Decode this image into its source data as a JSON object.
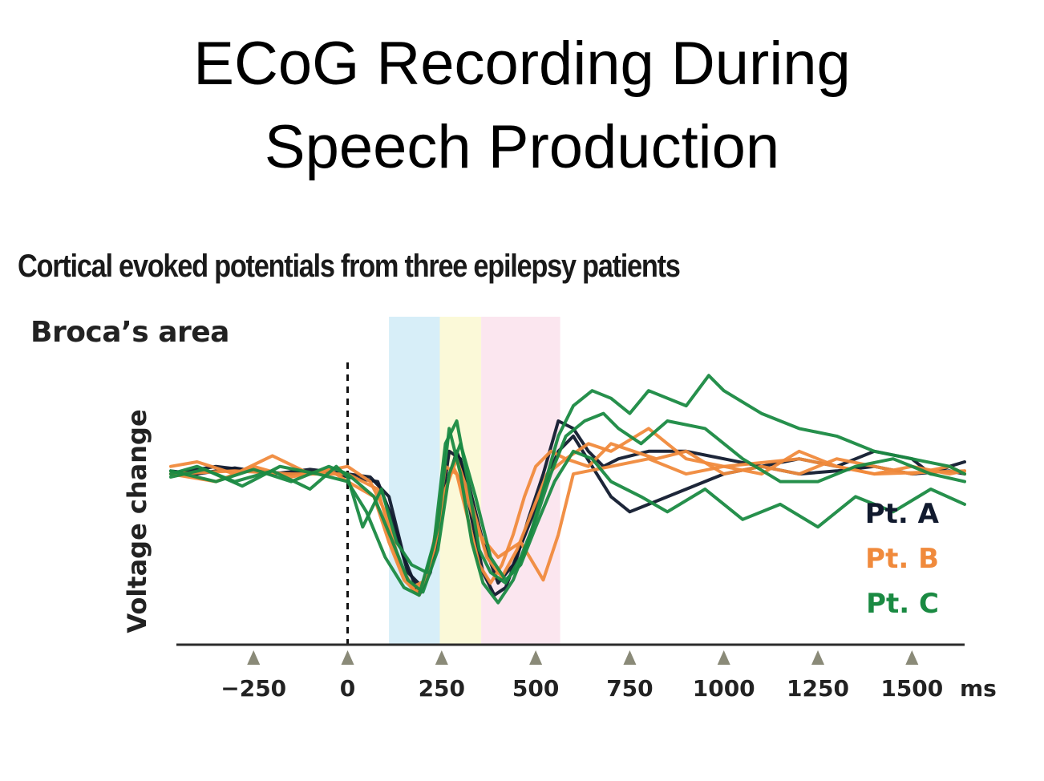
{
  "slide": {
    "title_line1": "ECoG Recording During",
    "title_line2": "Speech Production"
  },
  "chart_data": {
    "type": "line",
    "title": "Cortical evoked potentials from three epilepsy patients",
    "region_label": "Broca’s area",
    "ylabel": "Voltage change",
    "xlabel": "ms",
    "x_unit": "ms",
    "xlim": [
      -470,
      1640
    ],
    "ylim": [
      -1.0,
      0.8
    ],
    "x_ticks": [
      -250,
      0,
      250,
      500,
      750,
      1000,
      1250,
      1500
    ],
    "x_tick_labels": [
      "−250",
      "0",
      "250",
      "500",
      "750",
      "1000",
      "1250",
      "1500"
    ],
    "event_marker_x": 0,
    "shaded_windows": [
      {
        "start": 110,
        "end": 245,
        "color": "#d7eef8"
      },
      {
        "start": 245,
        "end": 355,
        "color": "#fbf9d8"
      },
      {
        "start": 355,
        "end": 565,
        "color": "#fbe6ef"
      }
    ],
    "legend": [
      {
        "label": "Pt. A",
        "color": "#111a2e"
      },
      {
        "label": "Pt. B",
        "color": "#f08a3c"
      },
      {
        "label": "Pt. C",
        "color": "#1a8a42"
      }
    ],
    "series": [
      {
        "name": "Pt. A",
        "color": "#111a2e",
        "x": [
          -470,
          -400,
          -300,
          -200,
          -100,
          0,
          60,
          110,
          150,
          190,
          220,
          250,
          270,
          300,
          330,
          360,
          390,
          420,
          450,
          480,
          520,
          560,
          600,
          640,
          680,
          720,
          800,
          900,
          1000,
          1100,
          1200,
          1300,
          1400,
          1500,
          1550,
          1600,
          1640
        ],
        "y": [
          0.02,
          0.0,
          0.04,
          0.0,
          0.03,
          0.0,
          -0.02,
          -0.15,
          -0.55,
          -0.8,
          -0.65,
          -0.2,
          0.15,
          0.1,
          -0.3,
          -0.65,
          -0.8,
          -0.75,
          -0.55,
          -0.3,
          0.0,
          0.35,
          0.3,
          0.15,
          0.05,
          0.1,
          0.15,
          0.15,
          0.1,
          0.05,
          0.1,
          0.05,
          0.15,
          0.1,
          0.0,
          0.05,
          0.08
        ]
      },
      {
        "name": "Pt. A",
        "color": "#111a2e",
        "x": [
          -470,
          -350,
          -250,
          -150,
          -50,
          0,
          80,
          120,
          160,
          200,
          230,
          260,
          290,
          320,
          360,
          400,
          440,
          480,
          520,
          560,
          600,
          650,
          700,
          750,
          800,
          900,
          1000,
          1100,
          1200,
          1300,
          1400,
          1500,
          1600,
          1640
        ],
        "y": [
          0.0,
          0.05,
          0.02,
          0.0,
          0.02,
          -0.02,
          -0.05,
          -0.3,
          -0.65,
          -0.75,
          -0.55,
          -0.1,
          0.15,
          -0.05,
          -0.45,
          -0.72,
          -0.6,
          -0.35,
          -0.1,
          0.15,
          0.25,
          0.05,
          -0.15,
          -0.25,
          -0.2,
          -0.1,
          0.0,
          0.05,
          0.0,
          0.02,
          0.05,
          0.0,
          0.02,
          0.0
        ]
      },
      {
        "name": "Pt. B",
        "color": "#f08a3c",
        "x": [
          -470,
          -400,
          -300,
          -200,
          -100,
          0,
          60,
          100,
          140,
          180,
          210,
          240,
          260,
          290,
          320,
          350,
          380,
          410,
          440,
          470,
          500,
          540,
          580,
          640,
          700,
          800,
          850,
          900,
          1000,
          1100,
          1200,
          1300,
          1400,
          1500,
          1600,
          1640
        ],
        "y": [
          0.05,
          0.08,
          0.0,
          0.12,
          0.0,
          0.05,
          -0.05,
          -0.25,
          -0.6,
          -0.78,
          -0.7,
          -0.3,
          0.05,
          0.0,
          -0.3,
          -0.6,
          -0.72,
          -0.6,
          -0.4,
          -0.15,
          0.05,
          0.15,
          0.1,
          0.2,
          0.15,
          0.3,
          0.2,
          0.1,
          0.05,
          0.0,
          0.15,
          0.05,
          0.0,
          0.05,
          0.0,
          0.02
        ]
      },
      {
        "name": "Pt. B",
        "color": "#f08a3c",
        "x": [
          -470,
          -350,
          -250,
          -150,
          -50,
          0,
          70,
          110,
          150,
          190,
          230,
          260,
          290,
          330,
          370,
          410,
          450,
          490,
          530,
          580,
          640,
          700,
          760,
          820,
          900,
          1000,
          1100,
          1200,
          1300,
          1400,
          1500,
          1600,
          1640
        ],
        "y": [
          0.0,
          -0.05,
          0.05,
          -0.02,
          0.03,
          -0.05,
          -0.15,
          -0.45,
          -0.7,
          -0.8,
          -0.5,
          -0.1,
          0.1,
          -0.2,
          -0.55,
          -0.68,
          -0.5,
          -0.25,
          0.0,
          0.1,
          0.05,
          0.2,
          0.15,
          0.1,
          0.15,
          0.0,
          0.05,
          0.0,
          0.1,
          0.05,
          0.0,
          0.05,
          0.0
        ]
      },
      {
        "name": "Pt. B",
        "color": "#f08a3c",
        "x": [
          -470,
          -300,
          -150,
          0,
          80,
          130,
          170,
          210,
          250,
          280,
          310,
          350,
          400,
          460,
          520,
          560,
          600,
          700,
          800,
          900,
          1000,
          1200,
          1400,
          1640
        ],
        "y": [
          0.0,
          0.02,
          0.0,
          0.0,
          -0.1,
          -0.55,
          -0.75,
          -0.7,
          -0.2,
          0.05,
          -0.1,
          -0.4,
          -0.55,
          -0.45,
          -0.7,
          -0.4,
          0.0,
          0.05,
          0.1,
          0.0,
          0.05,
          0.1,
          0.0,
          0.02
        ]
      },
      {
        "name": "Pt. C",
        "color": "#1a8a42",
        "x": [
          -470,
          -400,
          -300,
          -200,
          -100,
          -30,
          0,
          40,
          90,
          130,
          170,
          210,
          240,
          270,
          300,
          330,
          360,
          400,
          440,
          480,
          520,
          560,
          600,
          650,
          700,
          750,
          800,
          900,
          960,
          1000,
          1100,
          1200,
          1300,
          1400,
          1500,
          1600,
          1640
        ],
        "y": [
          0.0,
          0.05,
          -0.05,
          0.02,
          -0.1,
          0.05,
          -0.02,
          -0.35,
          -0.1,
          -0.45,
          -0.6,
          -0.65,
          -0.35,
          0.3,
          0.0,
          -0.45,
          -0.72,
          -0.85,
          -0.7,
          -0.45,
          -0.1,
          0.25,
          0.45,
          0.55,
          0.5,
          0.4,
          0.55,
          0.45,
          0.65,
          0.55,
          0.4,
          0.3,
          0.25,
          0.15,
          0.1,
          0.05,
          0.0
        ]
      },
      {
        "name": "Pt. C",
        "color": "#1a8a42",
        "x": [
          -470,
          -380,
          -280,
          -180,
          -80,
          0,
          50,
          100,
          150,
          190,
          230,
          260,
          290,
          320,
          350,
          380,
          420,
          460,
          500,
          540,
          580,
          630,
          680,
          720,
          780,
          850,
          950,
          1050,
          1150,
          1250,
          1350,
          1450,
          1550,
          1640
        ],
        "y": [
          -0.02,
          0.03,
          -0.08,
          0.05,
          0.0,
          -0.05,
          -0.25,
          -0.55,
          -0.75,
          -0.8,
          -0.45,
          0.2,
          0.35,
          -0.05,
          -0.5,
          -0.65,
          -0.72,
          -0.55,
          -0.3,
          0.0,
          0.25,
          0.35,
          0.4,
          0.3,
          0.2,
          0.35,
          0.3,
          0.1,
          -0.05,
          -0.05,
          0.05,
          0.1,
          0.0,
          -0.05
        ]
      },
      {
        "name": "Pt. C",
        "color": "#1a8a42",
        "x": [
          -470,
          -350,
          -250,
          -150,
          -50,
          0,
          70,
          120,
          160,
          200,
          240,
          270,
          300,
          340,
          380,
          420,
          460,
          500,
          550,
          600,
          650,
          700,
          780,
          850,
          950,
          1050,
          1150,
          1250,
          1350,
          1450,
          1550,
          1640
        ],
        "y": [
          0.02,
          -0.05,
          0.03,
          -0.05,
          0.05,
          0.0,
          -0.15,
          -0.45,
          -0.7,
          -0.78,
          -0.5,
          0.0,
          0.2,
          -0.15,
          -0.55,
          -0.7,
          -0.6,
          -0.35,
          -0.05,
          0.15,
          0.1,
          -0.05,
          -0.15,
          -0.25,
          -0.1,
          -0.3,
          -0.2,
          -0.35,
          -0.15,
          -0.25,
          -0.1,
          -0.2
        ]
      }
    ]
  }
}
